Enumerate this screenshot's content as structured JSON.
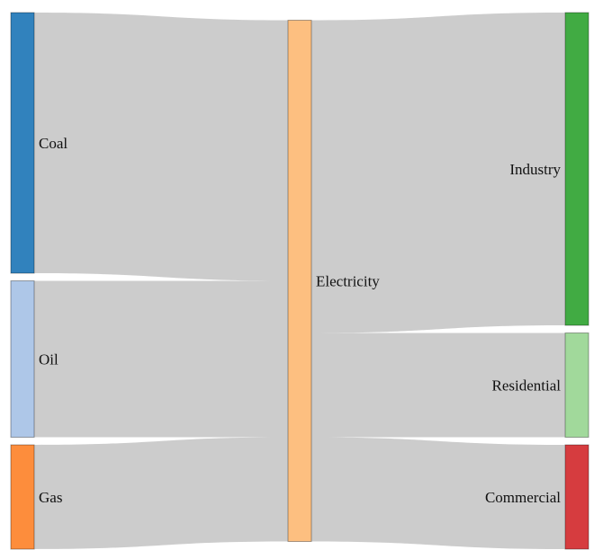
{
  "chart_data": {
    "type": "sankey",
    "nodes": [
      {
        "id": "coal",
        "label": "Coal",
        "color": "#3182bd",
        "column": 0
      },
      {
        "id": "oil",
        "label": "Oil",
        "color": "#aec7e8",
        "column": 0
      },
      {
        "id": "gas",
        "label": "Gas",
        "color": "#fd8d3c",
        "column": 0
      },
      {
        "id": "electricity",
        "label": "Electricity",
        "color": "#fdbf80",
        "column": 1
      },
      {
        "id": "industry",
        "label": "Industry",
        "color": "#41ab43",
        "column": 2
      },
      {
        "id": "residential",
        "label": "Residential",
        "color": "#a1d99b",
        "column": 2
      },
      {
        "id": "commercial",
        "label": "Commercial",
        "color": "#d63c3f",
        "column": 2
      }
    ],
    "links": [
      {
        "source": "coal",
        "target": "electricity",
        "value": 50
      },
      {
        "source": "oil",
        "target": "electricity",
        "value": 30
      },
      {
        "source": "gas",
        "target": "electricity",
        "value": 20
      },
      {
        "source": "electricity",
        "target": "industry",
        "value": 60
      },
      {
        "source": "electricity",
        "target": "residential",
        "value": 20
      },
      {
        "source": "electricity",
        "target": "commercial",
        "value": 20
      }
    ],
    "link_color": "#cccccc"
  }
}
